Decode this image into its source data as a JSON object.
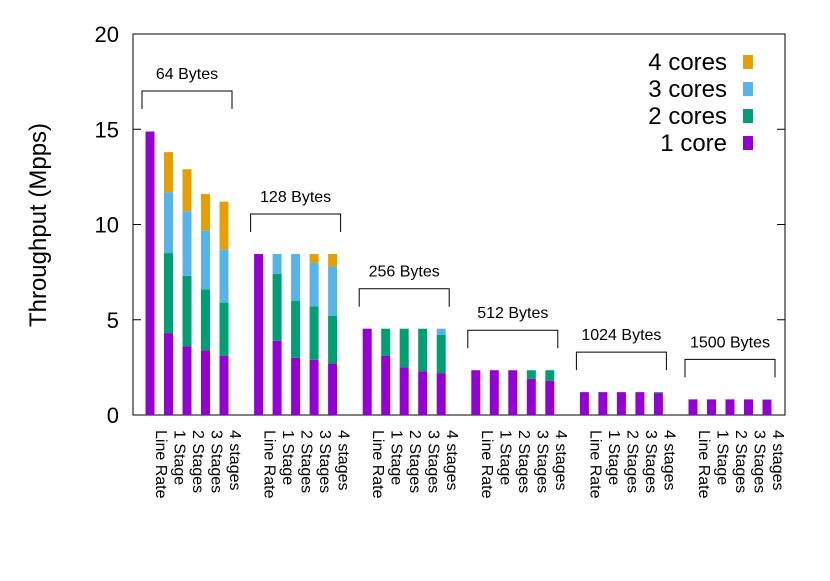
{
  "chart_data": {
    "type": "bar",
    "stacked": true,
    "ylabel": "Throughput (Mpps)",
    "xlabel": "",
    "ylim": [
      0,
      20
    ],
    "yticks": [
      0,
      5,
      10,
      15,
      20
    ],
    "grid": false,
    "legend_position": "top-right",
    "stack_order": [
      "1 core",
      "2 cores",
      "3 cores",
      "4 cores"
    ],
    "legend_order": [
      "4 cores",
      "3 cores",
      "2 cores",
      "1 core"
    ],
    "colors": {
      "1 core": "#9400d3",
      "2 cores": "#009e73",
      "3 cores": "#56b4e9",
      "4 cores": "#e69f00"
    },
    "categories": [
      "Line Rate",
      "1 Stage",
      "2 Stages",
      "3 Stages",
      "4 stages"
    ],
    "groups": [
      {
        "label": "64 Bytes",
        "line_rate": 14.88,
        "stacks": [
          {
            "category": "1 Stage",
            "segments": [
              4.3,
              4.2,
              3.2,
              2.1
            ]
          },
          {
            "category": "2 Stages",
            "segments": [
              3.6,
              3.7,
              3.4,
              2.2
            ]
          },
          {
            "category": "3 Stages",
            "segments": [
              3.4,
              3.2,
              3.1,
              1.9
            ]
          },
          {
            "category": "4 stages",
            "segments": [
              3.1,
              2.8,
              2.8,
              2.5
            ]
          }
        ]
      },
      {
        "label": "128 Bytes",
        "line_rate": 8.45,
        "stacks": [
          {
            "category": "1 Stage",
            "segments": [
              3.9,
              3.5,
              1.05,
              0.0
            ]
          },
          {
            "category": "2 Stages",
            "segments": [
              3.0,
              3.0,
              2.45,
              0.0
            ]
          },
          {
            "category": "3 Stages",
            "segments": [
              2.9,
              2.8,
              2.3,
              0.45
            ]
          },
          {
            "category": "4 stages",
            "segments": [
              2.7,
              2.5,
              2.6,
              0.65
            ]
          }
        ]
      },
      {
        "label": "256 Bytes",
        "line_rate": 4.53,
        "stacks": [
          {
            "category": "1 Stage",
            "segments": [
              3.1,
              1.43,
              0.0,
              0.0
            ]
          },
          {
            "category": "2 Stages",
            "segments": [
              2.5,
              2.03,
              0.0,
              0.0
            ]
          },
          {
            "category": "3 Stages",
            "segments": [
              2.3,
              2.23,
              0.0,
              0.0
            ]
          },
          {
            "category": "4 stages",
            "segments": [
              2.2,
              2.0,
              0.33,
              0.0
            ]
          }
        ]
      },
      {
        "label": "512 Bytes",
        "line_rate": 2.35,
        "stacks": [
          {
            "category": "1 Stage",
            "segments": [
              2.35,
              0.0,
              0.0,
              0.0
            ]
          },
          {
            "category": "2 Stages",
            "segments": [
              2.35,
              0.0,
              0.0,
              0.0
            ]
          },
          {
            "category": "3 Stages",
            "segments": [
              1.9,
              0.45,
              0.0,
              0.0
            ]
          },
          {
            "category": "4 stages",
            "segments": [
              1.8,
              0.55,
              0.0,
              0.0
            ]
          }
        ]
      },
      {
        "label": "1024 Bytes",
        "line_rate": 1.2,
        "stacks": [
          {
            "category": "1 Stage",
            "segments": [
              1.2,
              0.0,
              0.0,
              0.0
            ]
          },
          {
            "category": "2 Stages",
            "segments": [
              1.2,
              0.0,
              0.0,
              0.0
            ]
          },
          {
            "category": "3 Stages",
            "segments": [
              1.2,
              0.0,
              0.0,
              0.0
            ]
          },
          {
            "category": "4 stages",
            "segments": [
              1.15,
              0.05,
              0.0,
              0.0
            ]
          }
        ]
      },
      {
        "label": "1500 Bytes",
        "line_rate": 0.82,
        "stacks": [
          {
            "category": "1 Stage",
            "segments": [
              0.82,
              0.0,
              0.0,
              0.0
            ]
          },
          {
            "category": "2 Stages",
            "segments": [
              0.82,
              0.0,
              0.0,
              0.0
            ]
          },
          {
            "category": "3 Stages",
            "segments": [
              0.82,
              0.0,
              0.0,
              0.0
            ]
          },
          {
            "category": "4 stages",
            "segments": [
              0.8,
              0.02,
              0.0,
              0.0
            ]
          }
        ]
      }
    ]
  }
}
